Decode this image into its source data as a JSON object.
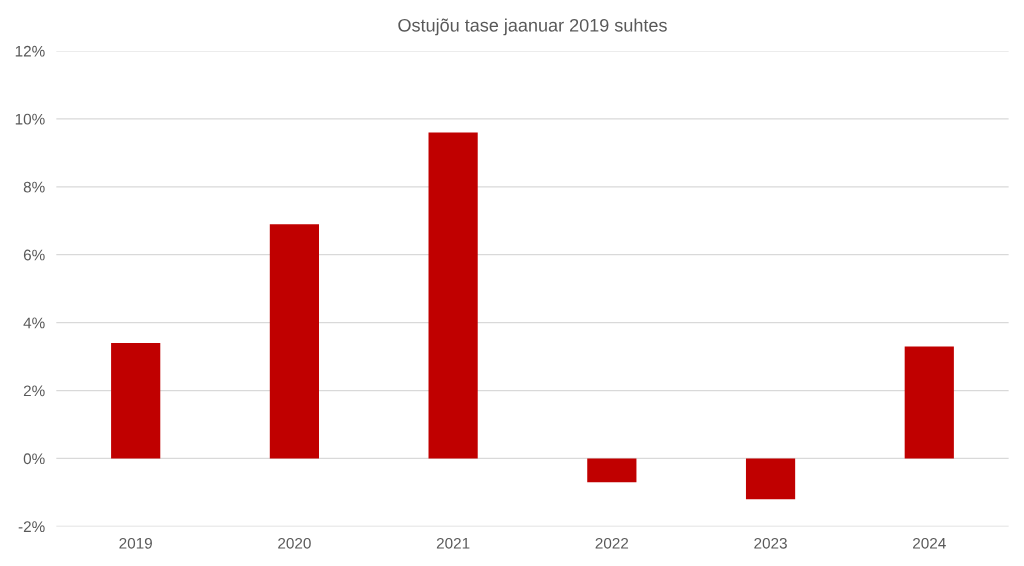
{
  "chart_data": {
    "type": "bar",
    "title": "Ostujõu tase jaanuar 2019 suhtes",
    "categories": [
      "2019",
      "2020",
      "2021",
      "2022",
      "2023",
      "2024"
    ],
    "series": [
      {
        "color": "#c00000",
        "values": [
          3.4,
          6.9,
          9.6,
          -0.7,
          -1.2,
          3.3
        ]
      }
    ],
    "ylim": [
      -2,
      12
    ],
    "yticks": [
      {
        "value": -2,
        "label": "-2%"
      },
      {
        "value": 0,
        "label": "0%"
      },
      {
        "value": 2,
        "label": "2%"
      },
      {
        "value": 4,
        "label": "4%"
      },
      {
        "value": 6,
        "label": "6%"
      },
      {
        "value": 8,
        "label": "8%"
      },
      {
        "value": 10,
        "label": "10%"
      },
      {
        "value": 12,
        "label": "12%"
      }
    ],
    "grid": "y",
    "legend": false
  }
}
